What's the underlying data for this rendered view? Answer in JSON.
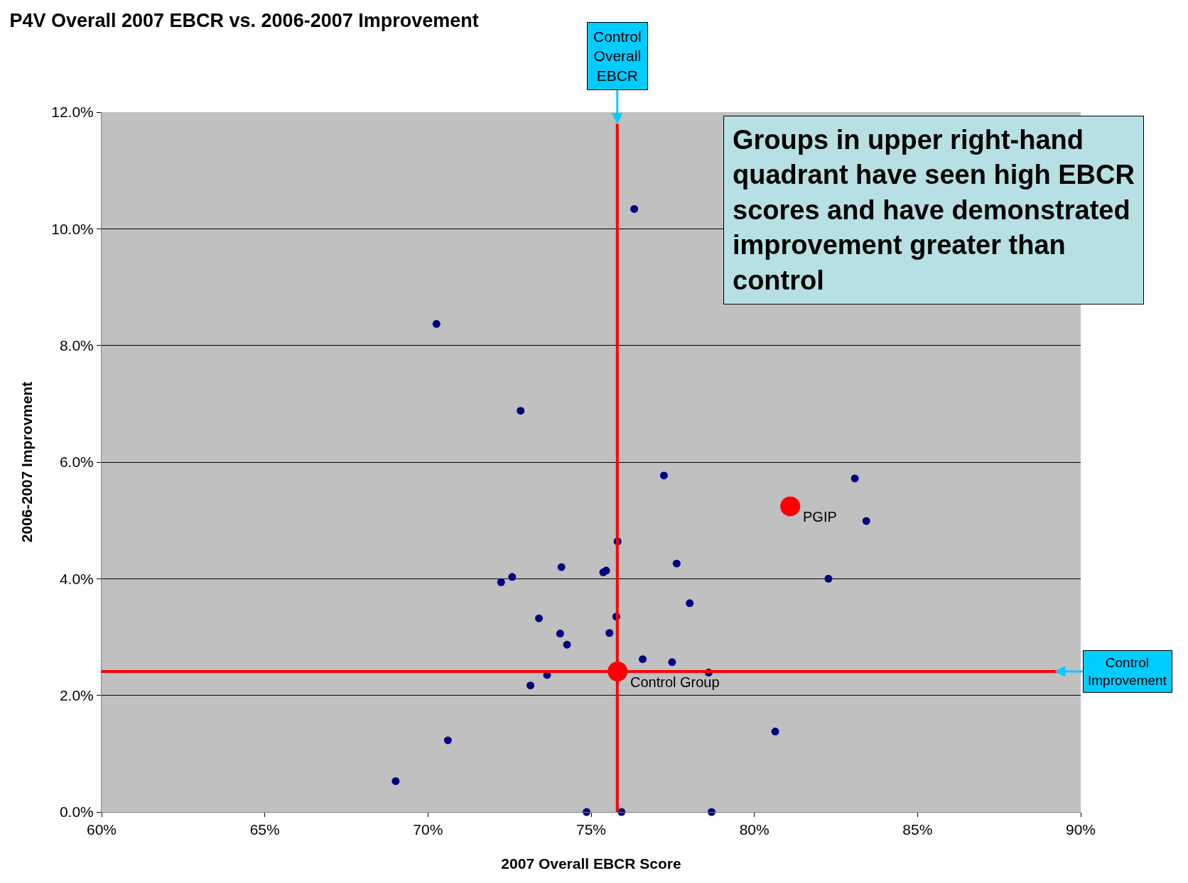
{
  "chart_data": {
    "type": "scatter",
    "title": "P4V Overall 2007 EBCR vs. 2006-2007 Improvement",
    "xlabel": "2007 Overall EBCR Score",
    "ylabel": "2006-2007 Improvment",
    "series": [
      {
        "color": "#000080",
        "x": [
          76.32,
          70.26,
          72.84,
          77.23,
          83.08,
          83.43,
          75.81,
          77.62,
          74.09,
          75.37,
          75.46,
          72.58,
          72.24,
          82.27,
          78.02,
          73.4,
          75.77,
          74.05,
          75.56,
          74.26,
          76.58,
          77.48,
          73.65,
          73.14,
          78.6,
          80.64,
          70.61,
          69.01,
          74.86,
          75.93,
          78.69
        ],
        "values": [
          10.34,
          8.37,
          6.88,
          5.77,
          5.72,
          4.99,
          4.64,
          4.26,
          4.2,
          4.11,
          4.14,
          4.03,
          3.94,
          4.0,
          3.58,
          3.32,
          3.35,
          3.06,
          3.07,
          2.87,
          2.62,
          2.57,
          2.35,
          2.17,
          2.39,
          1.38,
          1.23,
          0.53,
          0,
          0,
          0
        ]
      },
      {
        "name": "PGIP",
        "color": "#ff0000",
        "marker": "circle",
        "x": [
          81.1
        ],
        "values": [
          5.24
        ]
      },
      {
        "name": "Control Group",
        "color": "#ff0000",
        "marker": "circle",
        "x": [
          75.81
        ],
        "values": [
          2.41
        ]
      }
    ],
    "ref_lines": [
      {
        "axis": "x",
        "value": 75.8,
        "label": "Control Overall EBCR",
        "color": "#ff0000"
      },
      {
        "axis": "y",
        "value": 2.41,
        "label": "Control Improvement",
        "color": "#ff0000"
      }
    ],
    "annotations": [
      "Groups in upper right-hand quadrant have seen high EBCR scores and have demonstrated improvement greater than control"
    ],
    "xlim": [
      60,
      90
    ],
    "xticks": [
      {
        "value": 60,
        "label": "60%"
      },
      {
        "value": 65,
        "label": "65%"
      },
      {
        "value": 70,
        "label": "70%"
      },
      {
        "value": 75,
        "label": "75%"
      },
      {
        "value": 80,
        "label": "80%"
      },
      {
        "value": 85,
        "label": "85%"
      },
      {
        "value": 90,
        "label": "90%"
      }
    ],
    "ylim": [
      0,
      12
    ],
    "yticks": [
      {
        "value": 0,
        "label": "0.0%"
      },
      {
        "value": 2,
        "label": "2.0%"
      },
      {
        "value": 4,
        "label": "4.0%"
      },
      {
        "value": 6,
        "label": "6.0%"
      },
      {
        "value": 8,
        "label": "8.0%"
      },
      {
        "value": 10,
        "label": "10.0%"
      },
      {
        "value": 12,
        "label": "12.0%"
      }
    ],
    "grid": "y",
    "legend": false,
    "marker": "circle"
  }
}
